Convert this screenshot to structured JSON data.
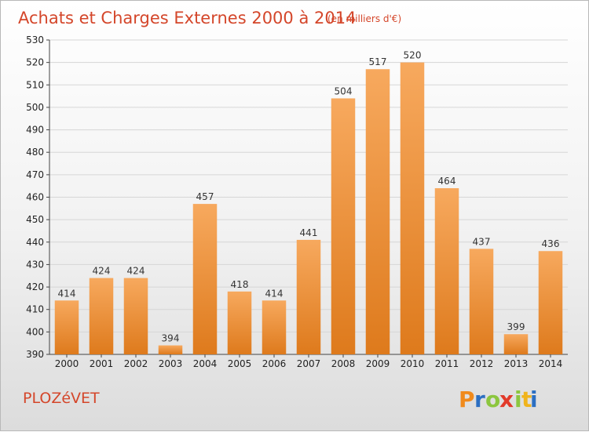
{
  "chart_data": {
    "type": "bar",
    "title": "Achats et Charges Externes 2000 à 2014",
    "subtitle": "(en milliers d'€)",
    "categories": [
      "2000",
      "2001",
      "2002",
      "2003",
      "2004",
      "2005",
      "2006",
      "2007",
      "2008",
      "2009",
      "2010",
      "2011",
      "2012",
      "2013",
      "2014"
    ],
    "values": [
      414,
      424,
      424,
      394,
      457,
      418,
      414,
      441,
      504,
      517,
      520,
      464,
      437,
      399,
      436
    ],
    "ylim": [
      390,
      530
    ],
    "yticks": [
      390,
      400,
      410,
      420,
      430,
      440,
      450,
      460,
      470,
      480,
      490,
      500,
      510,
      520,
      530
    ],
    "xlabel": "",
    "ylabel": "",
    "grid": true,
    "colors": {
      "bar_light": "#f6a65a",
      "bar_dark": "#e07d1f",
      "grid": "#d6d6d6"
    }
  },
  "footer": {
    "commune": "PLOZéVET",
    "logo_letters": [
      "P",
      "r",
      "o",
      "x",
      "i",
      "t",
      "i"
    ],
    "logo_colors": [
      "#f08a1c",
      "#2c6fc2",
      "#8cc63f",
      "#e23a2a",
      "#8cc63f",
      "#f0b41c",
      "#2c6fc2"
    ]
  }
}
